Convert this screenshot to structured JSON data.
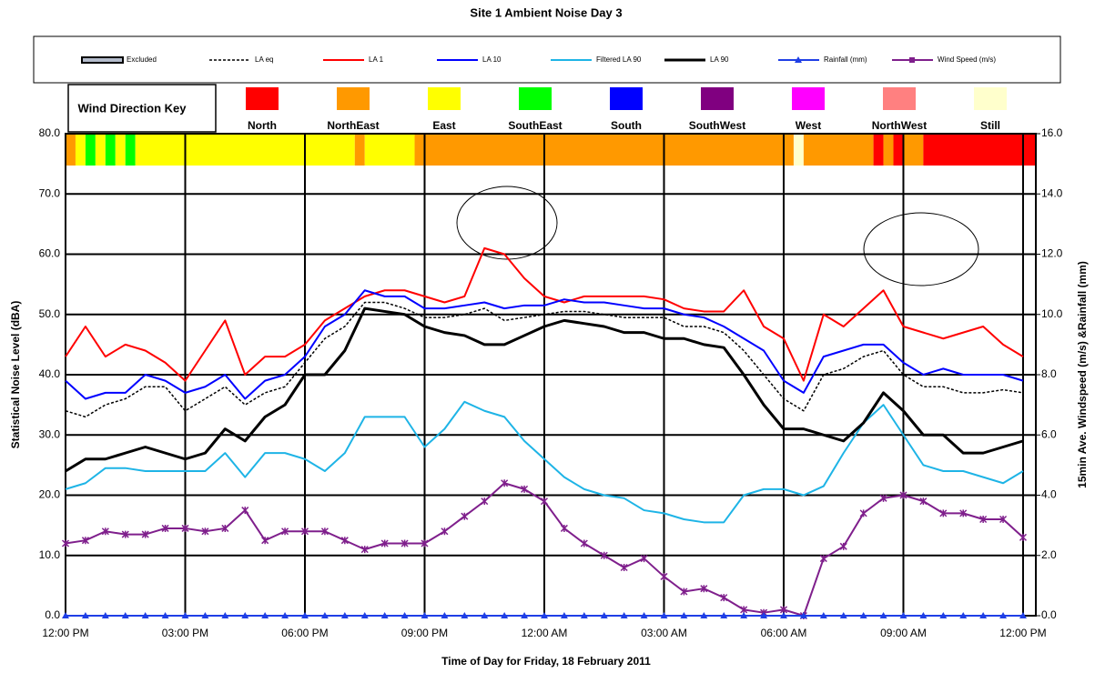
{
  "chart_data": {
    "type": "line",
    "title": "Site 1 Ambient Noise Day 3",
    "xlabel": "Time of Day for Friday, 18 February 2011",
    "ylabel": "Statistical Noise Level (dBA)",
    "y2label": "15min Ave. Windspeed (m/s) &Rainfall (mm)",
    "x": [
      0,
      0.5,
      1,
      1.5,
      2,
      2.5,
      3,
      3.5,
      4,
      4.5,
      5,
      5.5,
      6,
      6.5,
      7,
      7.5,
      8,
      8.5,
      9,
      9.5,
      10,
      10.5,
      11,
      11.5,
      12,
      12.5,
      13,
      13.5,
      14,
      14.5,
      15,
      15.5,
      16,
      16.5,
      17,
      17.5,
      18,
      18.5,
      19,
      19.5,
      20,
      20.5,
      21,
      21.5,
      22,
      22.5,
      23,
      23.5,
      24
    ],
    "xlim": [
      0,
      24.32
    ],
    "xticks": [
      {
        "value": 0,
        "label": "12:00 PM"
      },
      {
        "value": 3,
        "label": "03:00 PM"
      },
      {
        "value": 6,
        "label": "06:00 PM"
      },
      {
        "value": 9,
        "label": "09:00 PM"
      },
      {
        "value": 12,
        "label": "12:00 AM"
      },
      {
        "value": 15,
        "label": "03:00 AM"
      },
      {
        "value": 18,
        "label": "06:00 AM"
      },
      {
        "value": 21,
        "label": "09:00 AM"
      },
      {
        "value": 24,
        "label": "12:00 PM"
      }
    ],
    "ylim": [
      0,
      80
    ],
    "yticks": [
      {
        "value": 0,
        "label": "0.0"
      },
      {
        "value": 10,
        "label": "10.0"
      },
      {
        "value": 20,
        "label": "20.0"
      },
      {
        "value": 30,
        "label": "30.0"
      },
      {
        "value": 40,
        "label": "40.0"
      },
      {
        "value": 50,
        "label": "50.0"
      },
      {
        "value": 60,
        "label": "60.0"
      },
      {
        "value": 70,
        "label": "70.0"
      },
      {
        "value": 80,
        "label": "80.0"
      }
    ],
    "y2lim": [
      0,
      16
    ],
    "y2ticks": [
      {
        "value": 0,
        "label": "0.0"
      },
      {
        "value": 2,
        "label": "2.0"
      },
      {
        "value": 4,
        "label": "4.0"
      },
      {
        "value": 6,
        "label": "6.0"
      },
      {
        "value": 8,
        "label": "8.0"
      },
      {
        "value": 10,
        "label": "10.0"
      },
      {
        "value": 12,
        "label": "12.0"
      },
      {
        "value": 14,
        "label": "14.0"
      },
      {
        "value": 16,
        "label": "16.0"
      }
    ],
    "grid": true,
    "excluded_legend": {
      "name": "Excluded",
      "color": "#b4bccc"
    },
    "series": [
      {
        "name": "LA eq",
        "color": "#000000",
        "dash": true,
        "width": 1.5,
        "values": [
          34,
          33,
          35,
          36,
          38,
          38,
          34,
          36,
          38,
          35,
          37,
          38,
          42,
          46,
          48,
          52,
          52,
          51,
          49.5,
          49.5,
          50,
          51,
          49,
          49.5,
          50,
          50.5,
          50.5,
          50,
          49.5,
          49.5,
          49.5,
          48,
          48,
          47,
          44,
          40,
          36,
          34,
          40,
          41,
          43,
          44,
          40,
          38,
          38,
          37,
          37,
          37.5,
          37
        ]
      },
      {
        "name": "LA 1",
        "color": "#ff0000",
        "width": 2,
        "values": [
          43,
          48,
          43,
          45,
          44,
          42,
          39,
          44,
          49,
          40,
          43,
          43,
          45,
          49,
          51,
          53,
          54,
          54,
          53,
          52,
          53,
          61,
          60,
          56,
          53,
          52,
          53,
          53,
          53,
          53,
          52.5,
          51,
          50.5,
          50.5,
          54,
          48,
          46,
          39,
          50,
          48,
          51,
          54,
          48,
          47,
          46,
          47,
          48,
          45,
          43
        ]
      },
      {
        "name": "LA 10",
        "color": "#0000ff",
        "width": 2,
        "values": [
          39,
          36,
          37,
          37,
          40,
          39,
          37,
          38,
          40,
          36,
          39,
          40,
          43,
          48,
          50,
          54,
          53,
          53,
          51,
          51,
          51.5,
          52,
          51,
          51.5,
          51.5,
          52.5,
          52,
          52,
          51.5,
          51,
          51,
          50,
          49.5,
          48,
          46,
          44,
          39,
          37,
          43,
          44,
          45,
          45,
          42,
          40,
          41,
          40,
          40,
          40,
          39
        ]
      },
      {
        "name": "Filtered LA 90",
        "color": "#1eb4e6",
        "width": 2,
        "values": [
          21,
          22,
          24.5,
          24.5,
          24,
          24,
          24,
          24,
          27,
          23,
          27,
          27,
          26,
          24,
          27,
          33,
          33,
          33,
          28,
          31,
          35.5,
          34,
          33,
          29,
          26,
          23,
          21,
          20,
          19.5,
          17.5,
          17,
          16,
          15.5,
          15.5,
          20,
          21,
          21,
          20,
          21.5,
          27,
          32,
          35,
          30,
          25,
          24,
          24,
          23,
          22,
          24
        ]
      },
      {
        "name": "LA 90",
        "color": "#000000",
        "width": 3,
        "values": [
          24,
          26,
          26,
          27,
          28,
          27,
          26,
          27,
          31,
          29,
          33,
          35,
          40,
          40,
          44,
          51,
          50.5,
          50,
          48,
          47,
          46.5,
          45,
          45,
          46.5,
          48,
          49,
          48.5,
          48,
          47,
          47,
          46,
          46,
          45,
          44.5,
          40,
          35,
          31,
          31,
          30,
          29,
          32,
          37,
          34,
          30,
          30,
          27,
          27,
          28,
          29
        ]
      },
      {
        "name": "Rainfall (mm)",
        "color": "#1f3fe6",
        "axis": "y2",
        "marker": "triangle",
        "width": 2,
        "values": [
          0,
          0,
          0,
          0,
          0,
          0,
          0,
          0,
          0,
          0,
          0,
          0,
          0,
          0,
          0,
          0,
          0,
          0,
          0,
          0,
          0,
          0,
          0,
          0,
          0,
          0,
          0,
          0,
          0,
          0,
          0,
          0,
          0,
          0,
          0,
          0,
          0,
          0,
          0,
          0,
          0,
          0,
          0,
          0,
          0,
          0,
          0,
          0,
          0
        ]
      },
      {
        "name": "Wind Speed (m/s)",
        "color": "#7f1f8c",
        "axis": "y2",
        "marker": "cross",
        "width": 2,
        "values": [
          2.4,
          2.5,
          2.8,
          2.7,
          2.7,
          2.9,
          2.9,
          2.8,
          2.9,
          3.5,
          2.5,
          2.8,
          2.8,
          2.8,
          2.5,
          2.2,
          2.4,
          2.4,
          2.4,
          2.8,
          3.3,
          3.8,
          4.4,
          4.2,
          3.8,
          2.9,
          2.4,
          2.0,
          1.6,
          1.9,
          1.3,
          0.8,
          0.9,
          0.6,
          0.2,
          0.1,
          0.2,
          0,
          1.9,
          2.3,
          3.4,
          3.9,
          4.0,
          3.8,
          3.4,
          3.4,
          3.2,
          3.2,
          2.6
        ]
      }
    ],
    "wind_key_title": "Wind Direction Key",
    "wind_key": [
      {
        "name": "North",
        "color": "#ff0000"
      },
      {
        "name": "NorthEast",
        "color": "#ff9900"
      },
      {
        "name": "East",
        "color": "#ffff00"
      },
      {
        "name": "SouthEast",
        "color": "#00ff00"
      },
      {
        "name": "South",
        "color": "#0000ff"
      },
      {
        "name": "SouthWest",
        "color": "#800080"
      },
      {
        "name": "West",
        "color": "#ff00ff"
      },
      {
        "name": "NorthWest",
        "color": "#ff8080"
      },
      {
        "name": "Still",
        "color": "#ffffcc"
      }
    ],
    "wind_direction": [
      {
        "start": 0,
        "end": 0.25,
        "direction": 1
      },
      {
        "start": 0.25,
        "end": 0.5,
        "direction": 2
      },
      {
        "start": 0.5,
        "end": 0.75,
        "direction": 3
      },
      {
        "start": 0.75,
        "end": 1,
        "direction": 2
      },
      {
        "start": 1,
        "end": 1.25,
        "direction": 3
      },
      {
        "start": 1.25,
        "end": 1.5,
        "direction": 2
      },
      {
        "start": 1.5,
        "end": 1.75,
        "direction": 3
      },
      {
        "start": 1.75,
        "end": 7.25,
        "direction": 2
      },
      {
        "start": 7.25,
        "end": 7.5,
        "direction": 1
      },
      {
        "start": 7.5,
        "end": 8.75,
        "direction": 2
      },
      {
        "start": 8.75,
        "end": 18.25,
        "direction": 1
      },
      {
        "start": 18.25,
        "end": 18.5,
        "direction": 8
      },
      {
        "start": 18.5,
        "end": 20.25,
        "direction": 1
      },
      {
        "start": 20.25,
        "end": 20.5,
        "direction": 0
      },
      {
        "start": 20.5,
        "end": 20.75,
        "direction": 1
      },
      {
        "start": 20.75,
        "end": 21,
        "direction": 0
      },
      {
        "start": 21,
        "end": 21.5,
        "direction": 1
      },
      {
        "start": 21.5,
        "end": 24.32,
        "direction": 0
      }
    ]
  }
}
